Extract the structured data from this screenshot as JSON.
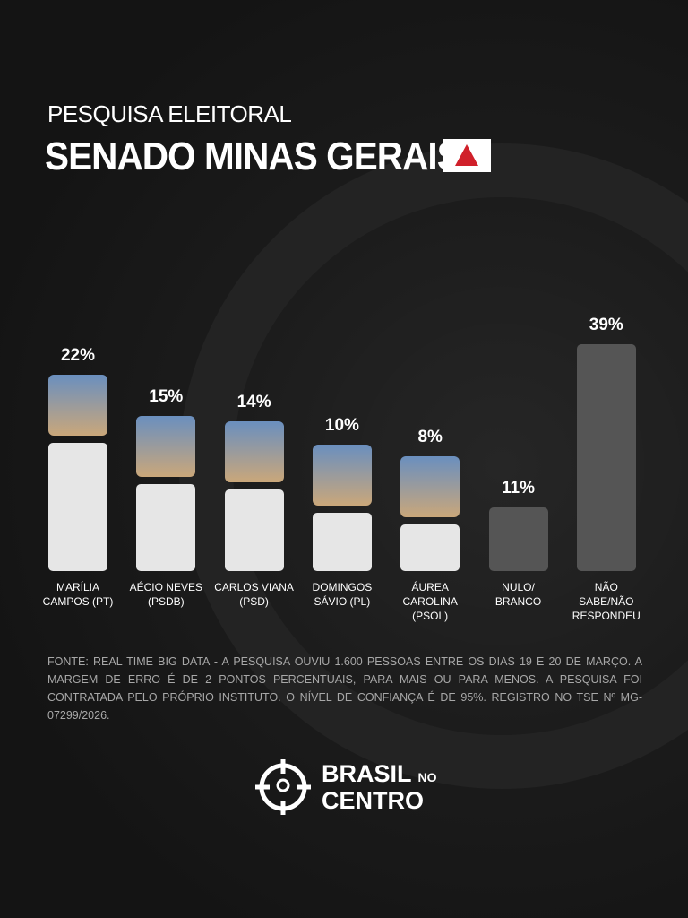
{
  "chart_data": {
    "type": "bar",
    "supertitle": "PESQUISA ELEITORAL",
    "title": "SENADO MINAS GERAIS",
    "categories": [
      "MARÍLIA CAMPOS (PT)",
      "AÉCIO NEVES (PSDB)",
      "CARLOS VIANA (PSD)",
      "DOMINGOS SÁVIO (PL)",
      "ÁUREA CAROLINA (PSOL)",
      "NULO/ BRANCO",
      "NÃO SABE/NÃO RESPONDEU"
    ],
    "values": [
      22,
      15,
      14,
      10,
      8,
      11,
      39
    ],
    "value_labels": [
      "22%",
      "15%",
      "14%",
      "10%",
      "8%",
      "11%",
      "39%"
    ],
    "colors": [
      "#e6e6e6",
      "#e6e6e6",
      "#e6e6e6",
      "#e6e6e6",
      "#e6e6e6",
      "#555555",
      "#555555"
    ],
    "source": "FONTE: REAL TIME BIG DATA - A PESQUISA OUVIU 1.600 PESSOAS ENTRE OS DIAS 19 E 20 DE MARÇO. A MARGEM DE ERRO É DE 2 PONTOS PERCENTUAIS, PARA MAIS OU PARA MENOS. A PESQUISA FOI CONTRATADA PELO PRÓPRIO INSTITUTO. O NÍVEL DE CONFIANÇA É DE 95%. REGISTRO NO TSE Nº MG-07299/2026.",
    "brand": {
      "line1": "BRASIL",
      "small": "NO",
      "line2": "CENTRO"
    }
  }
}
